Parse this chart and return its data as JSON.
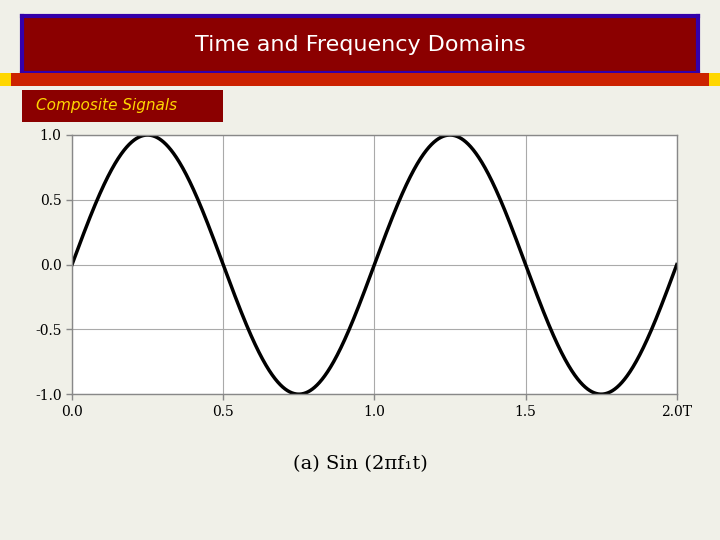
{
  "title": "Time and Frequency Domains",
  "subtitle": "Composite Signals",
  "caption": "(a) Sin (2πf₁t)",
  "bg_color": "#f0f0e8",
  "title_bg": "#8B0000",
  "title_border": "#3300AA",
  "title_text_color": "#ffffff",
  "subtitle_bg": "#8B0000",
  "subtitle_text_color": "#FFD700",
  "deco_left_color": "#FFD700",
  "deco_mid_color": "#CC2200",
  "deco_right_color": "#FFD700",
  "xlim": [
    0.0,
    2.0
  ],
  "ylim": [
    -1.0,
    1.0
  ],
  "xticks": [
    0.0,
    0.5,
    1.0,
    1.5,
    2.0
  ],
  "yticks": [
    -1.0,
    -0.5,
    0.0,
    0.5,
    1.0
  ],
  "xlabel_last": "T",
  "frequency": 1.0,
  "line_color": "#000000",
  "line_width": 2.5,
  "grid_color": "#aaaaaa",
  "grid_linewidth": 0.8,
  "plot_bg": "#ffffff",
  "plot_border_color": "#888888"
}
